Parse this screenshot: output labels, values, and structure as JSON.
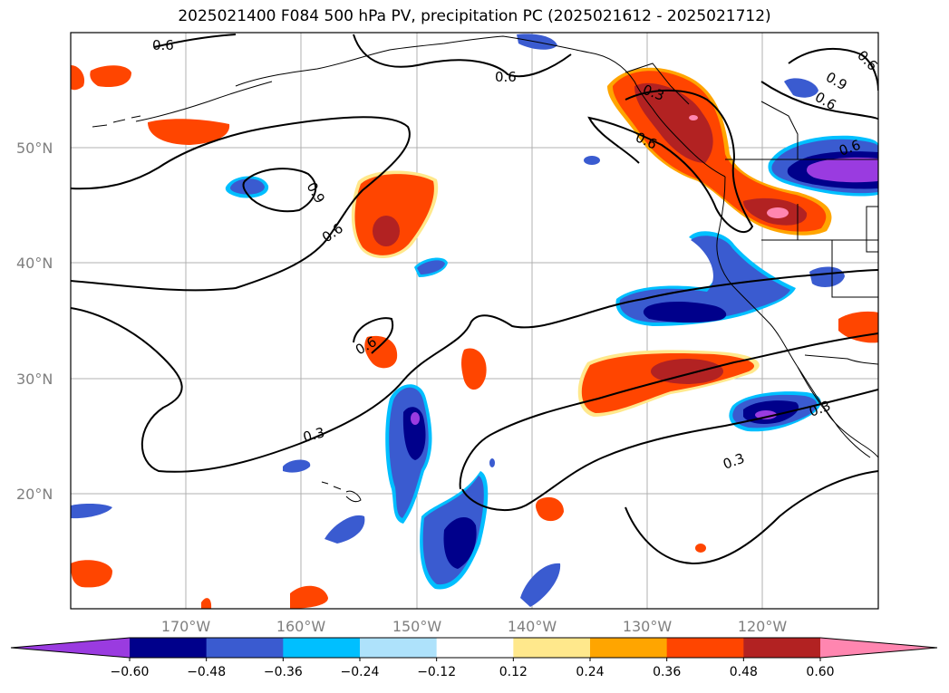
{
  "title": "2025021400 F084 500 hPa PV, precipitation PC (2025021612 - 2025021712)",
  "latitude_labels": [
    "50°N",
    "40°N",
    "30°N",
    "20°N"
  ],
  "longitude_labels": [
    "170°W",
    "160°W",
    "150°W",
    "140°W",
    "130°W",
    "120°W"
  ],
  "contour_labels": [
    "0.6",
    "0.6",
    "0.9",
    "0.6",
    "0.6",
    "0.3",
    "0.6",
    "0.9",
    "0.6",
    "0.6",
    "0.6",
    "0.3",
    "0.3",
    "0.3"
  ],
  "colorbar": {
    "tick_labels": [
      "−0.60",
      "−0.48",
      "−0.36",
      "−0.24",
      "−0.12",
      "0.12",
      "0.24",
      "0.36",
      "0.48",
      "0.60"
    ],
    "colors": [
      "#9a3be0",
      "#00008b",
      "#3a5bd0",
      "#00bfff",
      "#aee2fb",
      "#ffffff",
      "#ffe88c",
      "#ffa500",
      "#ff4500",
      "#b22222",
      "#ff86b0"
    ]
  },
  "colors": {
    "negative_extreme": "#9a3be0",
    "negative_strong": "#00008b",
    "negative_mid": "#3a5bd0",
    "negative_light": "#00bfff",
    "positive_light": "#ffe88c",
    "positive_mid": "#ff4500",
    "positive_strong": "#b22222",
    "positive_extreme": "#ff86b0"
  }
}
